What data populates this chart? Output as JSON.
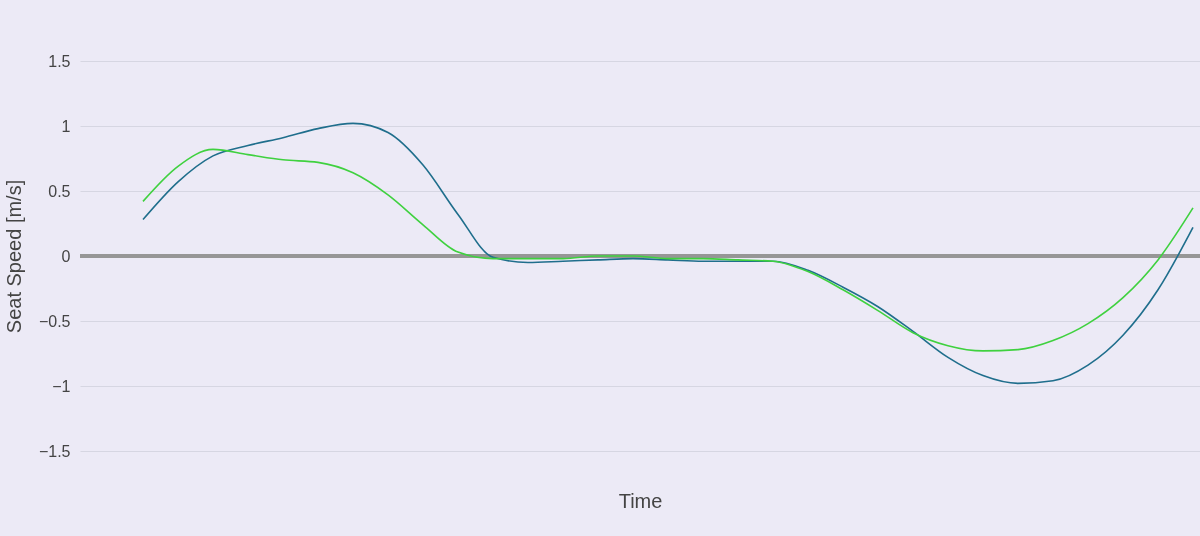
{
  "chart_data": {
    "type": "line",
    "xlabel": "Time",
    "ylabel": "Seat Speed [m/s]",
    "categories": [
      null,
      null,
      null,
      null,
      null,
      null,
      null,
      null,
      null,
      null,
      null,
      null,
      null,
      null,
      null,
      null,
      null,
      null,
      null,
      null,
      null,
      null,
      null,
      null,
      null,
      null,
      null,
      null,
      null,
      null,
      null
    ],
    "series": [
      {
        "color": "#1f6e8c",
        "values": [
          0.28,
          0.57,
          0.77,
          0.85,
          0.91,
          0.98,
          1.02,
          0.95,
          0.7,
          0.32,
          -0.01,
          -0.05,
          -0.04,
          -0.03,
          -0.02,
          -0.03,
          -0.04,
          -0.04,
          -0.04,
          -0.11,
          -0.24,
          -0.39,
          -0.58,
          -0.78,
          -0.92,
          -0.98,
          -0.96,
          -0.84,
          -0.61,
          -0.26,
          0.22
        ]
      },
      {
        "color": "#3fd13f",
        "values": [
          0.42,
          0.69,
          0.82,
          0.78,
          0.74,
          0.72,
          0.64,
          0.47,
          0.24,
          0.03,
          -0.02,
          -0.02,
          -0.02,
          0,
          0,
          -0.02,
          -0.02,
          -0.03,
          -0.04,
          -0.12,
          -0.26,
          -0.42,
          -0.59,
          -0.69,
          -0.73,
          -0.72,
          -0.65,
          -0.52,
          -0.32,
          -0.03,
          0.37
        ]
      }
    ],
    "ylim": [
      -1.5,
      1.5
    ],
    "yticks": [
      -1.5,
      -1,
      -0.5,
      0,
      0.5,
      1,
      1.5
    ],
    "ref_lines": [
      {
        "axis": "y",
        "value": 0,
        "color": "#969696"
      }
    ],
    "grid": "y",
    "tick_labels": "y"
  }
}
